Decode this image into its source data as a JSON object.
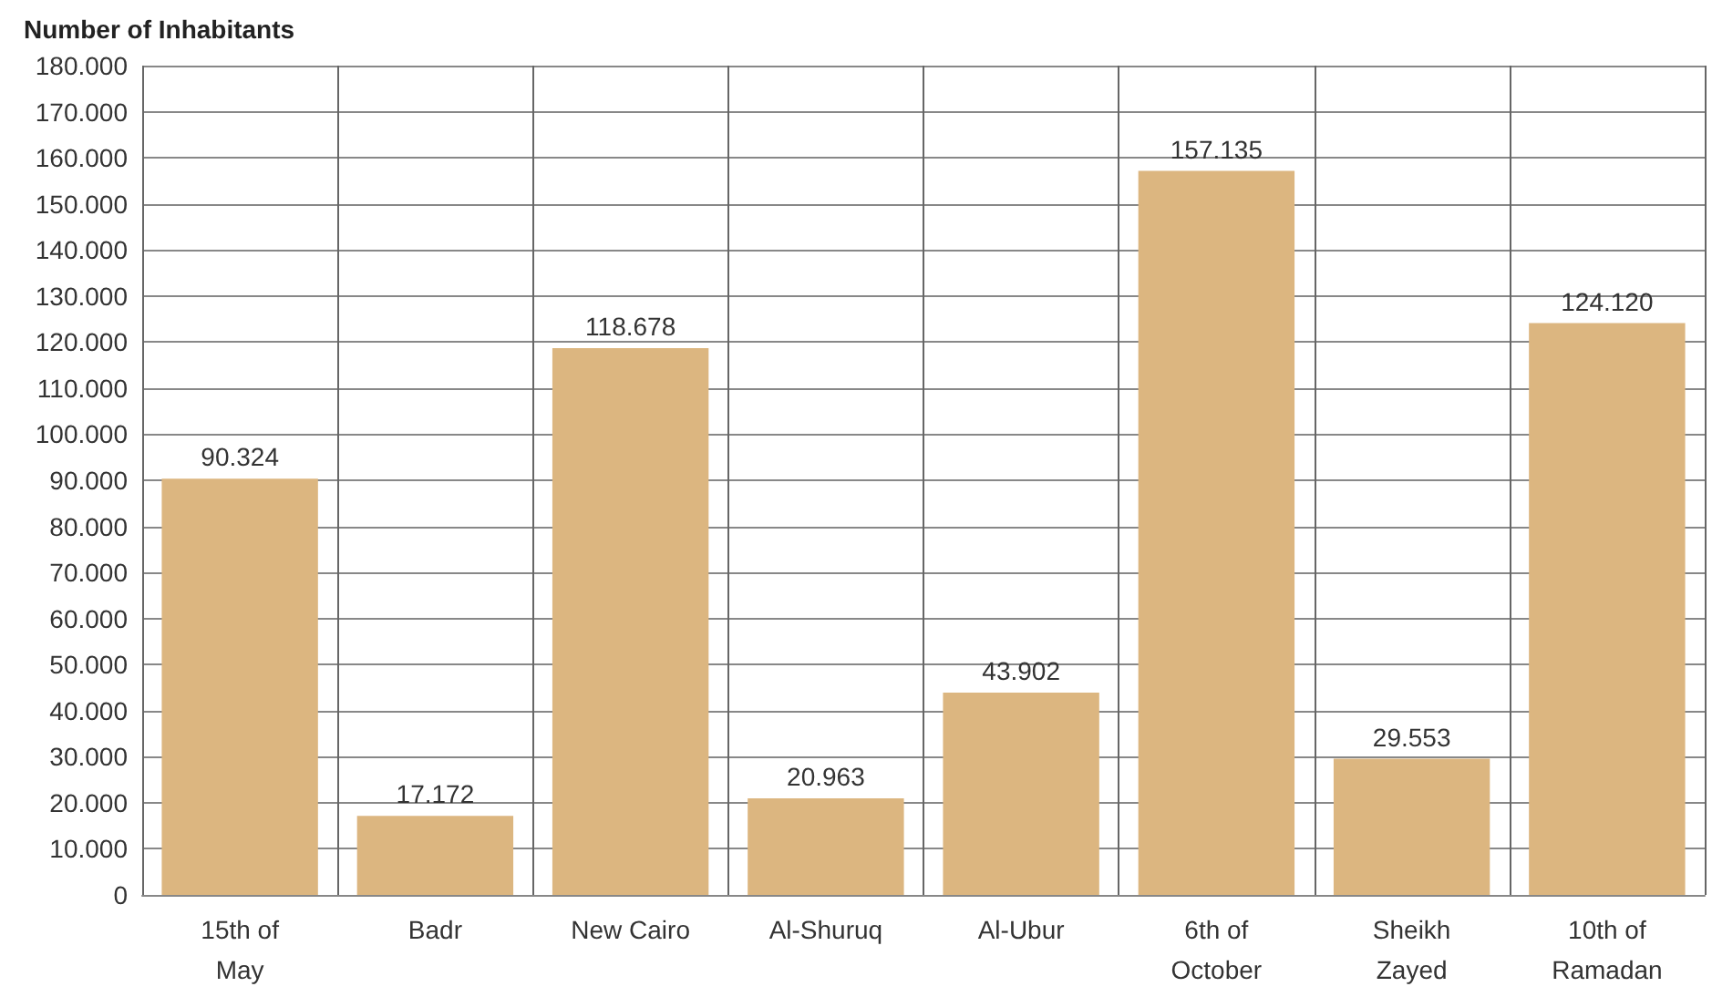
{
  "chart_data": {
    "type": "bar",
    "ylabel": "Number of Inhabitants",
    "categories": [
      "15th of May",
      "Badr",
      "New Cairo",
      "Al-Shuruq",
      "Al-Ubur",
      "6th of October",
      "Sheikh Zayed",
      "10th of Ramadan"
    ],
    "values": [
      90324,
      17172,
      118678,
      20963,
      43902,
      157135,
      29553,
      124120
    ],
    "value_labels": [
      "90.324",
      "17.172",
      "118.678",
      "20.963",
      "43.902",
      "157.135",
      "29.553",
      "124.120"
    ],
    "color": "#dcb680",
    "ylim": [
      0,
      180000
    ],
    "yticks": [
      0,
      {
        "value": 10000,
        "label": "10.000"
      },
      {
        "value": 20000,
        "label": "20.000"
      },
      {
        "value": 30000,
        "label": "30.000"
      },
      {
        "value": 40000,
        "label": "40.000"
      },
      {
        "value": 50000,
        "label": "50.000"
      },
      {
        "value": 60000,
        "label": "60.000"
      },
      {
        "value": 70000,
        "label": "70.000"
      },
      {
        "value": 80000,
        "label": "80.000"
      },
      {
        "value": 90000,
        "label": "90.000"
      },
      {
        "value": 100000,
        "label": "100.000"
      },
      {
        "value": 110000,
        "label": "110.000"
      },
      {
        "value": 120000,
        "label": "120.000"
      },
      {
        "value": 130000,
        "label": "130.000"
      },
      {
        "value": 140000,
        "label": "140.000"
      },
      {
        "value": 150000,
        "label": "150.000"
      },
      {
        "value": 160000,
        "label": "160.000"
      },
      {
        "value": 170000,
        "label": "170.000"
      },
      {
        "value": 180000,
        "label": "180.000"
      }
    ],
    "grid": true
  }
}
